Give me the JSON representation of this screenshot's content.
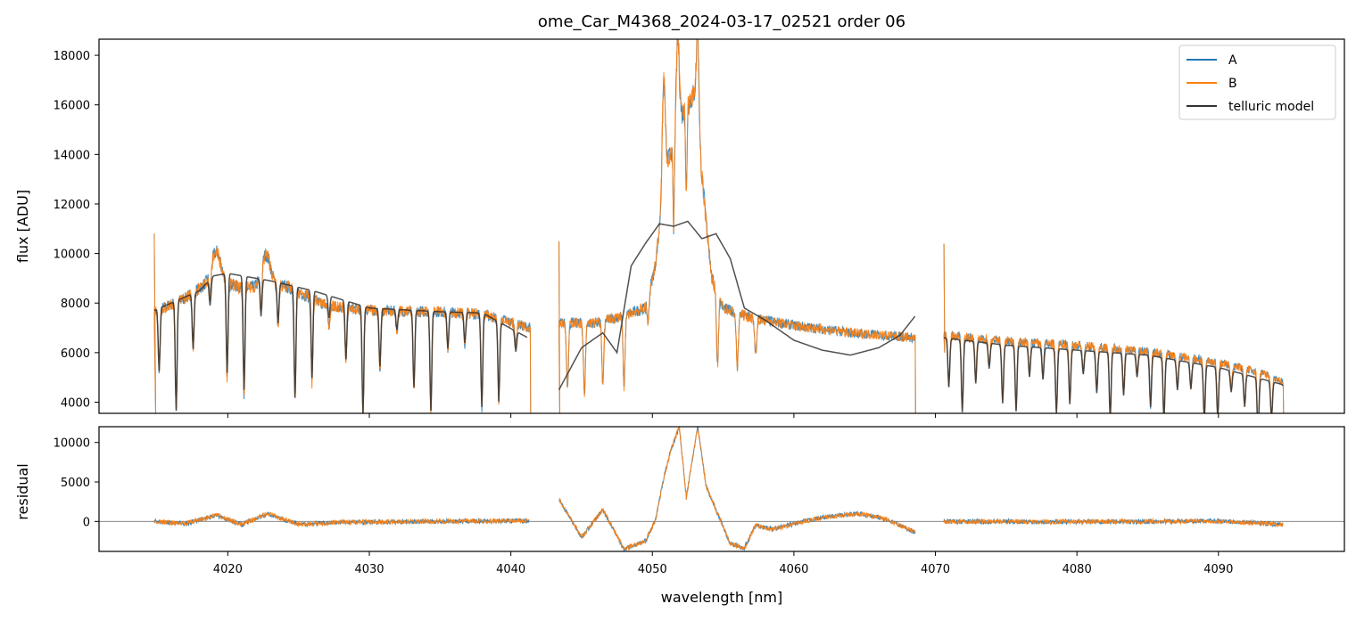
{
  "chart_data": {
    "type": "line",
    "title": "ome_Car_M4368_2024-03-17_02521  order 06",
    "xlabel": "wavelength [nm]",
    "x_ticks": [
      "4020",
      "4030",
      "4040",
      "4050",
      "4060",
      "4070",
      "4080",
      "4090"
    ],
    "x_tick_values": [
      4020,
      4030,
      4040,
      4050,
      4060,
      4070,
      4080,
      4090
    ],
    "xlim": [
      4010.9,
      4098.9
    ],
    "colors": {
      "A": "#1f77b4",
      "B": "#ff7f0e",
      "telluric": "#333333",
      "zero_line": "#777777"
    },
    "legend": {
      "placement": "top-right",
      "entries": [
        "A",
        "B",
        "telluric model"
      ]
    },
    "panels": [
      {
        "name": "flux",
        "ylabel": "flux [ADU]",
        "ylim": [
          3550,
          18650
        ],
        "y_ticks": [
          "4000",
          "6000",
          "8000",
          "10000",
          "12000",
          "14000",
          "16000",
          "18000"
        ],
        "y_tick_values": [
          4000,
          6000,
          8000,
          10000,
          12000,
          14000,
          16000,
          18000
        ],
        "segments": [
          {
            "x_range": [
              4014.8,
              4041.4
            ],
            "baseline": [
              [
                4014.8,
                7650
              ],
              [
                4017,
                8200
              ],
              [
                4019,
                9000
              ],
              [
                4021,
                8600
              ],
              [
                4024,
                8700
              ],
              [
                4027,
                7900
              ],
              [
                4030,
                7700
              ],
              [
                4035,
                7650
              ],
              [
                4038,
                7550
              ],
              [
                4041.4,
                7000
              ]
            ],
            "bumps": [
              [
                4019.2,
                0.45,
                1100
              ],
              [
                4022.7,
                0.45,
                1300
              ]
            ],
            "dips_every": 1.2,
            "dip_depth": [
              0.1,
              0.55
            ],
            "edge_spikes": [
              [
                4014.8,
                10800
              ],
              [
                4014.9,
                3550
              ],
              [
                4041.4,
                3550
              ]
            ]
          },
          {
            "x_range": [
              4043.4,
              4068.6
            ],
            "baseline": [
              [
                4043.4,
                7200
              ],
              [
                4046,
                7200
              ],
              [
                4048,
                7500
              ],
              [
                4049.5,
                7800
              ],
              [
                4050.2,
                9500
              ],
              [
                4051,
                13500
              ],
              [
                4052,
                15500
              ],
              [
                4053,
                16500
              ],
              [
                4053.6,
                12500
              ],
              [
                4054.2,
                9000
              ],
              [
                4055,
                7800
              ],
              [
                4057,
                7400
              ],
              [
                4060,
                7100
              ],
              [
                4064,
                6800
              ],
              [
                4068.6,
                6600
              ]
            ],
            "bumps": [
              [
                4050.8,
                0.15,
                4500
              ],
              [
                4051.8,
                0.15,
                3500
              ],
              [
                4053.2,
                0.12,
                4000
              ]
            ],
            "dips": [
              [
                4044,
                0.1,
                0.35
              ],
              [
                4045.2,
                0.1,
                0.4
              ],
              [
                4046.5,
                0.1,
                0.35
              ],
              [
                4048,
                0.1,
                0.38
              ],
              [
                4049.7,
                0.1,
                0.12
              ],
              [
                4051.5,
                0.07,
                0.25
              ],
              [
                4052.4,
                0.07,
                0.22
              ],
              [
                4054.6,
                0.1,
                0.35
              ],
              [
                4056,
                0.1,
                0.3
              ],
              [
                4057.3,
                0.1,
                0.2
              ]
            ],
            "edge_spikes": [
              [
                4043.4,
                10500
              ],
              [
                4043.45,
                3550
              ],
              [
                4068.6,
                3550
              ]
            ]
          },
          {
            "x_range": [
              4070.6,
              4094.6
            ],
            "baseline": [
              [
                4070.6,
                6700
              ],
              [
                4075,
                6450
              ],
              [
                4080,
                6300
              ],
              [
                4085,
                6050
              ],
              [
                4090,
                5600
              ],
              [
                4093,
                5200
              ],
              [
                4094.6,
                4800
              ]
            ],
            "dips_every": 0.95,
            "dip_depth": [
              0.15,
              0.45
            ],
            "edge_spikes": [
              [
                4070.6,
                10400
              ],
              [
                4070.65,
                6000
              ],
              [
                4094.6,
                3550
              ]
            ]
          }
        ],
        "telluric_model": [
          [
            4014.8,
            7700
          ],
          [
            4016,
            8000
          ],
          [
            4018,
            8500
          ],
          [
            4019,
            9100
          ],
          [
            4020,
            9200
          ],
          [
            4022,
            9000
          ],
          [
            4023,
            8900
          ],
          [
            4026,
            8500
          ],
          [
            4030,
            7800
          ],
          [
            4035,
            7650
          ],
          [
            4038,
            7600
          ],
          [
            4041.2,
            6600
          ],
          [
            4043.4,
            4500
          ],
          [
            4045,
            6200
          ],
          [
            4046.5,
            6800
          ],
          [
            4047.5,
            6000
          ],
          [
            4048.5,
            9500
          ],
          [
            4049.5,
            10400
          ],
          [
            4050.5,
            11200
          ],
          [
            4051.5,
            11100
          ],
          [
            4052.5,
            11300
          ],
          [
            4053.5,
            10600
          ],
          [
            4054.5,
            10800
          ],
          [
            4055.5,
            9800
          ],
          [
            4056.5,
            7800
          ],
          [
            4058,
            7300
          ],
          [
            4060,
            6500
          ],
          [
            4062,
            6100
          ],
          [
            4064,
            5900
          ],
          [
            4066,
            6200
          ],
          [
            4067.5,
            6700
          ],
          [
            4068.6,
            7500
          ],
          [
            4070.6,
            6600
          ],
          [
            4075,
            6300
          ],
          [
            4080,
            6100
          ],
          [
            4085,
            5900
          ],
          [
            4090,
            5400
          ],
          [
            4094.6,
            4700
          ]
        ]
      },
      {
        "name": "residual",
        "ylabel": "residual",
        "ylim": [
          -3800,
          12000
        ],
        "y_ticks": [
          "0",
          "5000",
          "10000"
        ],
        "y_tick_values": [
          0,
          5000,
          10000
        ],
        "baseline": [
          [
            4014.8,
            0
          ],
          [
            4017,
            -300
          ],
          [
            4019.2,
            800
          ],
          [
            4021,
            -400
          ],
          [
            4022.8,
            1000
          ],
          [
            4025,
            -400
          ],
          [
            4028,
            -100
          ],
          [
            4035,
            0
          ],
          [
            4041.3,
            100
          ],
          [
            4043.4,
            2800
          ],
          [
            4045,
            -2000
          ],
          [
            4046.5,
            1500
          ],
          [
            4048,
            -3500
          ],
          [
            4049.5,
            -2500
          ],
          [
            4050.2,
            0
          ],
          [
            4050.8,
            5500
          ],
          [
            4051.3,
            9000
          ],
          [
            4051.9,
            12000
          ],
          [
            4052.4,
            3000
          ],
          [
            4053.2,
            12000
          ],
          [
            4053.8,
            4500
          ],
          [
            4054.6,
            1000
          ],
          [
            4055.5,
            -2800
          ],
          [
            4056.5,
            -3400
          ],
          [
            4057.3,
            -500
          ],
          [
            4058.5,
            -1000
          ],
          [
            4060,
            -300
          ],
          [
            4062,
            500
          ],
          [
            4064.5,
            1000
          ],
          [
            4066.5,
            300
          ],
          [
            4068.6,
            -1400
          ],
          [
            4070.6,
            0
          ],
          [
            4080,
            -50
          ],
          [
            4090,
            50
          ],
          [
            4094.6,
            -400
          ]
        ]
      }
    ]
  }
}
